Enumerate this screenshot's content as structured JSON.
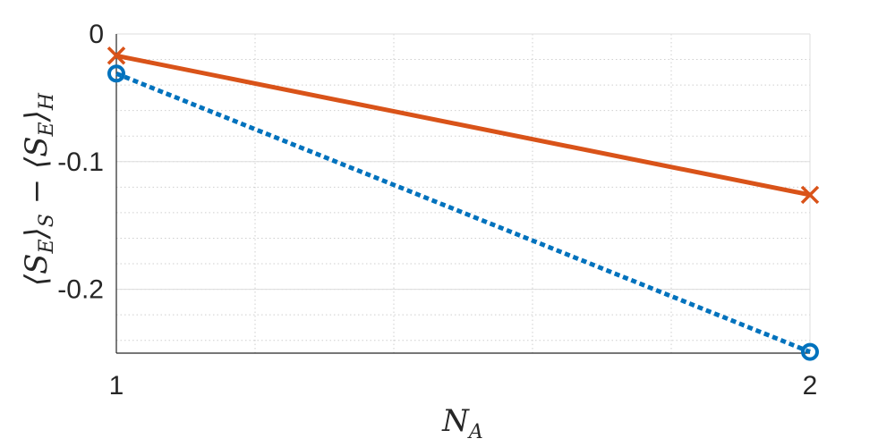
{
  "chart_data": {
    "type": "line",
    "title": "",
    "xlabel": "N_A",
    "ylabel": "⟨S_E⟩_S − ⟨S_E⟩_H",
    "xlim": [
      1,
      2
    ],
    "ylim": [
      -0.25,
      0
    ],
    "x_ticks": [
      "1",
      "2"
    ],
    "y_ticks": [
      "0",
      "-0.1",
      "-0.2"
    ],
    "grid": true,
    "minor_grid": true,
    "legend": "none",
    "x": [
      1,
      2
    ],
    "series": [
      {
        "values": [
          -0.017,
          -0.126
        ],
        "color": "#D95319",
        "marker": "x",
        "line_style": "solid"
      },
      {
        "values": [
          -0.031,
          -0.249
        ],
        "color": "#0072BD",
        "marker": "o",
        "line_style": "dotted"
      }
    ]
  }
}
